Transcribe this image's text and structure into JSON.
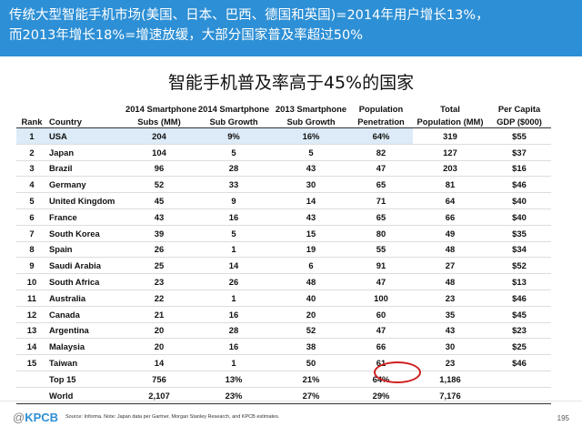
{
  "header": {
    "line1": "传统大型智能手机市场(美国、日本、巴西、德国和英国)=2014年用户增长13%，",
    "line2": "而2013年增长18%=增速放缓，大部分国家普及率超过50%"
  },
  "subtitle": "智能手机普及率高于45%的国家",
  "table": {
    "header_top": [
      "",
      "",
      "2014 Smartphone",
      "2014 Smartphone",
      "2013 Smartphone",
      "Population",
      "Total",
      "Per Capita"
    ],
    "header_bottom": [
      "Rank",
      "Country",
      "Subs (MM)",
      "Sub Growth",
      "Sub Growth",
      "Penetration",
      "Population (MM)",
      "GDP ($000)"
    ],
    "rows": [
      [
        "1",
        "USA",
        "204",
        "9%",
        "16%",
        "64%",
        "319",
        "$55"
      ],
      [
        "2",
        "Japan",
        "104",
        "5",
        "5",
        "82",
        "127",
        "$37"
      ],
      [
        "3",
        "Brazil",
        "96",
        "28",
        "43",
        "47",
        "203",
        "$16"
      ],
      [
        "4",
        "Germany",
        "52",
        "33",
        "30",
        "65",
        "81",
        "$46"
      ],
      [
        "5",
        "United Kingdom",
        "45",
        "9",
        "14",
        "71",
        "64",
        "$40"
      ],
      [
        "6",
        "France",
        "43",
        "16",
        "43",
        "65",
        "66",
        "$40"
      ],
      [
        "7",
        "South Korea",
        "39",
        "5",
        "15",
        "80",
        "49",
        "$35"
      ],
      [
        "8",
        "Spain",
        "26",
        "1",
        "19",
        "55",
        "48",
        "$34"
      ],
      [
        "9",
        "Saudi Arabia",
        "25",
        "14",
        "6",
        "91",
        "27",
        "$52"
      ],
      [
        "10",
        "South Africa",
        "23",
        "26",
        "48",
        "47",
        "48",
        "$13"
      ],
      [
        "11",
        "Australia",
        "22",
        "1",
        "40",
        "100",
        "23",
        "$46"
      ],
      [
        "12",
        "Canada",
        "21",
        "16",
        "20",
        "60",
        "35",
        "$45"
      ],
      [
        "13",
        "Argentina",
        "20",
        "28",
        "52",
        "47",
        "43",
        "$23"
      ],
      [
        "14",
        "Malaysia",
        "20",
        "16",
        "38",
        "66",
        "30",
        "$25"
      ],
      [
        "15",
        "Taiwan",
        "14",
        "1",
        "50",
        "61",
        "23",
        "$46"
      ]
    ],
    "totals": [
      [
        "",
        "Top 15",
        "756",
        "13%",
        "21%",
        "64%",
        "1,186",
        ""
      ],
      [
        "",
        "World",
        "2,107",
        "23%",
        "27%",
        "29%",
        "7,176",
        ""
      ]
    ]
  },
  "footer": {
    "logo_at": "@",
    "logo_text": "KPCB",
    "source": "Source: Informa. Note: Japan data per Gartner, Morgan Stanley Research, and KPCB estimates.",
    "page": "195"
  },
  "colors": {
    "header_bg": "#2d8fd5",
    "highlight_row": "#dcebf7",
    "circle": "#d01f1f"
  }
}
